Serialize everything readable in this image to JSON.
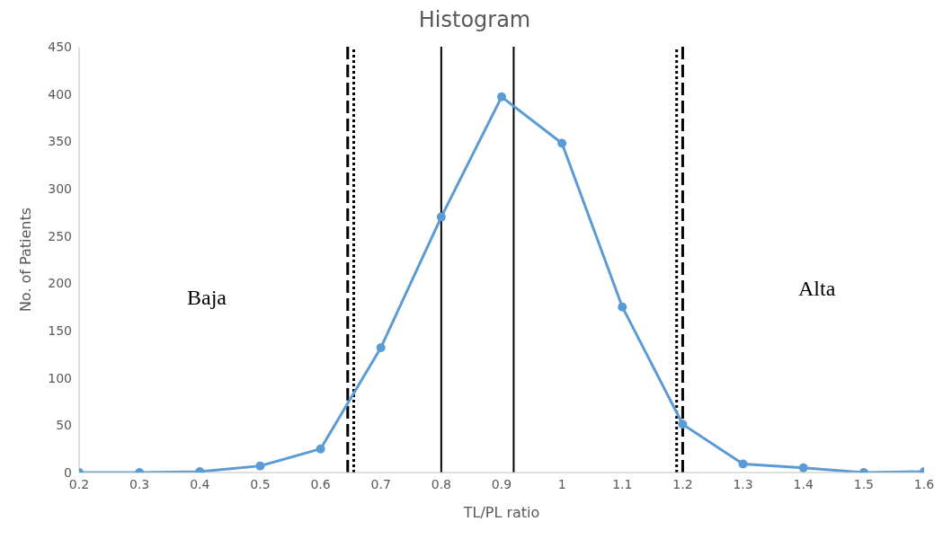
{
  "chart_data": {
    "type": "line",
    "title": "Histogram",
    "xlabel": "TL/PL ratio",
    "ylabel": "No. of Patients",
    "x": [
      0.2,
      0.3,
      0.4,
      0.5,
      0.6,
      0.7,
      0.8,
      0.9,
      1.0,
      1.1,
      1.2,
      1.3,
      1.4,
      1.5,
      1.6
    ],
    "series": [
      {
        "color": "#5b9bd5",
        "values": [
          0,
          0,
          1,
          7,
          25,
          132,
          270,
          397,
          348,
          175,
          51,
          9,
          5,
          0,
          1
        ]
      }
    ],
    "xlim": [
      0.2,
      1.6
    ],
    "xticks": [
      0.2,
      0.3,
      0.4,
      0.5,
      0.6,
      0.7,
      0.8,
      0.9,
      1,
      1.1,
      1.2,
      1.3,
      1.4,
      1.5,
      1.6
    ],
    "ylim": [
      0,
      450
    ],
    "yticks": [
      0,
      50,
      100,
      150,
      200,
      250,
      300,
      350,
      400,
      450
    ],
    "grid": false,
    "legend": false,
    "marker": "circle",
    "line_style": "solid",
    "ref_lines": [
      {
        "axis": "x",
        "value": 0.645,
        "color": "#000000",
        "line_style": "dashed"
      },
      {
        "axis": "x",
        "value": 0.655,
        "color": "#000000",
        "line_style": "dotted"
      },
      {
        "axis": "x",
        "value": 0.8,
        "color": "#000000",
        "line_style": "solid"
      },
      {
        "axis": "x",
        "value": 0.92,
        "color": "#000000",
        "line_style": "solid"
      },
      {
        "axis": "x",
        "value": 1.19,
        "color": "#000000",
        "line_style": "dotted"
      },
      {
        "axis": "x",
        "value": 1.2,
        "color": "#000000",
        "line_style": "dashed"
      }
    ],
    "annotations": [
      "Baja",
      "Alta"
    ]
  }
}
